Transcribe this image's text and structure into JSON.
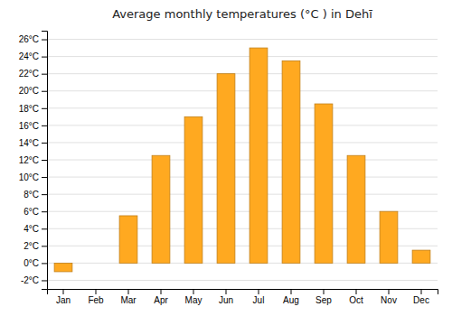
{
  "chart_data": {
    "type": "bar",
    "title": "Average monthly temperatures (°C ) in Dehī",
    "categories": [
      "Jan",
      "Feb",
      "Mar",
      "Apr",
      "May",
      "Jun",
      "Jul",
      "Aug",
      "Sep",
      "Oct",
      "Nov",
      "Dec"
    ],
    "values": [
      -1.0,
      0.0,
      5.5,
      12.5,
      17.0,
      22.0,
      25.0,
      23.5,
      18.5,
      12.5,
      6.0,
      1.5
    ],
    "color": "#FFA920",
    "ylim": [
      -3,
      27
    ],
    "yticks": [
      {
        "value": -2,
        "label": "-2°C"
      },
      {
        "value": 0,
        "label": "0°C"
      },
      {
        "value": 2,
        "label": "2°C"
      },
      {
        "value": 4,
        "label": "4°C"
      },
      {
        "value": 6,
        "label": "6°C"
      },
      {
        "value": 8,
        "label": "8°C"
      },
      {
        "value": 10,
        "label": "10°C"
      },
      {
        "value": 12,
        "label": "12°C"
      },
      {
        "value": 14,
        "label": "14°C"
      },
      {
        "value": 16,
        "label": "16°C"
      },
      {
        "value": 18,
        "label": "18°C"
      },
      {
        "value": 20,
        "label": "20°C"
      },
      {
        "value": 22,
        "label": "22°C"
      },
      {
        "value": 24,
        "label": "24°C"
      },
      {
        "value": 26,
        "label": "26°C"
      }
    ],
    "grid": true
  }
}
